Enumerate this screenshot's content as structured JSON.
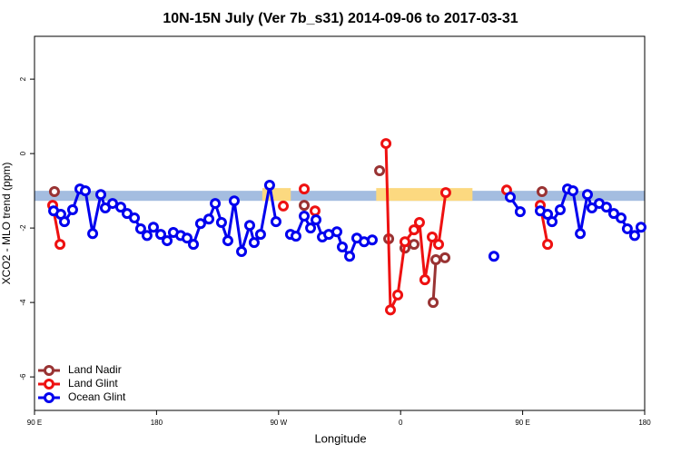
{
  "chart_data": {
    "type": "line",
    "title": "10N-15N July (Ver 7b_s31)   2014-09-06 to 2017-03-31",
    "xlabel": "Longitude",
    "ylabel": "XCO2 - MLO trend (ppm)",
    "xlim": [
      90,
      540
    ],
    "xticks": [
      {
        "value": 90,
        "label": "90 E"
      },
      180,
      {
        "value": 270,
        "label": "90 W"
      },
      {
        "value": 360,
        "label": "0"
      },
      {
        "value": 450,
        "label": "90 E"
      },
      {
        "value": 540,
        "label": "180"
      }
    ],
    "ylim": [
      -6.9,
      3.15
    ],
    "yticks": [
      -6,
      -4,
      -2,
      0,
      2
    ],
    "legend": "bottom-left",
    "band": {
      "range": [
        -1.27,
        -1.0
      ],
      "color": "#a4bde0",
      "highlights": [
        [
          258,
          279
        ],
        [
          342,
          413
        ]
      ],
      "highlight_color": "#fcd980"
    },
    "series": [
      {
        "name": "Land Nadir",
        "color": "#993333",
        "x": [
          104.7,
          null,
          288.9,
          null,
          344.5,
          null,
          351.2,
          null,
          363.2,
          369.9,
          null,
          384,
          386,
          392.7,
          null,
          464.3
        ],
        "values": [
          -1.02,
          null,
          -1.39,
          null,
          -0.46,
          null,
          -2.29,
          null,
          -2.54,
          -2.44,
          null,
          -4.0,
          -2.85,
          -2.8,
          null,
          -1.02
        ]
      },
      {
        "name": "Land Glint",
        "color": "#ee1111",
        "x": [
          103.4,
          108.8,
          null,
          273.5,
          null,
          288.9,
          null,
          296.9,
          null,
          349.2,
          352.5,
          357.9,
          363.2,
          369.9,
          373.9,
          377.9,
          383.3,
          388,
          393.3,
          null,
          438.2,
          null,
          463,
          468.4
        ],
        "values": [
          -1.39,
          -2.44,
          null,
          -1.41,
          null,
          -0.95,
          null,
          -1.54,
          null,
          0.27,
          -4.2,
          -3.8,
          -2.37,
          -2.05,
          -1.85,
          -3.39,
          -2.24,
          -2.44,
          -1.05,
          null,
          -0.98,
          null,
          -1.39,
          -2.44
        ]
      },
      {
        "name": "Ocean Glint",
        "color": "#0000ee",
        "x": [
          104.1,
          109.4,
          112.1,
          118.1,
          123.5,
          127.5,
          132.9,
          138.9,
          142.2,
          147.6,
          153.6,
          158.3,
          163.7,
          168.3,
          173,
          177.7,
          183.1,
          187.8,
          192.4,
          197.8,
          202.5,
          207.2,
          212.5,
          218.6,
          223.3,
          227.9,
          232.6,
          237.3,
          242.7,
          248.7,
          252,
          256.7,
          263.4,
          268.1,
          null,
          278.8,
          282.8,
          288.9,
          293.6,
          297.6,
          302.3,
          307,
          313,
          317,
          322.4,
          327.7,
          333.1,
          339.1,
          null,
          428.8,
          null,
          440.9,
          448.2,
          null,
          463,
          468.4,
          471.7,
          477.7,
          483.1,
          487.1,
          492.5,
          497.8,
          501.1,
          506.5,
          511.8,
          517.2,
          522.6,
          527.2,
          532.6,
          537.3
        ],
        "values": [
          -1.54,
          -1.63,
          -1.83,
          -1.51,
          -0.95,
          -1.0,
          -2.15,
          -1.1,
          -1.46,
          -1.34,
          -1.44,
          -1.61,
          -1.73,
          -2.02,
          -2.2,
          -1.98,
          -2.17,
          -2.34,
          -2.12,
          -2.2,
          -2.27,
          -2.44,
          -1.88,
          -1.76,
          -1.34,
          -1.85,
          -2.34,
          -1.27,
          -2.63,
          -1.93,
          -2.39,
          -2.17,
          -0.85,
          -1.83,
          null,
          -2.17,
          -2.22,
          -1.68,
          -2.0,
          -1.78,
          -2.24,
          -2.17,
          -2.1,
          -2.51,
          -2.76,
          -2.27,
          -2.37,
          -2.32,
          null,
          -2.76,
          null,
          -1.17,
          -1.56,
          null,
          -1.54,
          -1.63,
          -1.83,
          -1.51,
          -0.95,
          -1.0,
          -2.15,
          -1.1,
          -1.46,
          -1.34,
          -1.44,
          -1.61,
          -1.73,
          -2.02,
          -2.2,
          -1.98
        ]
      }
    ]
  }
}
